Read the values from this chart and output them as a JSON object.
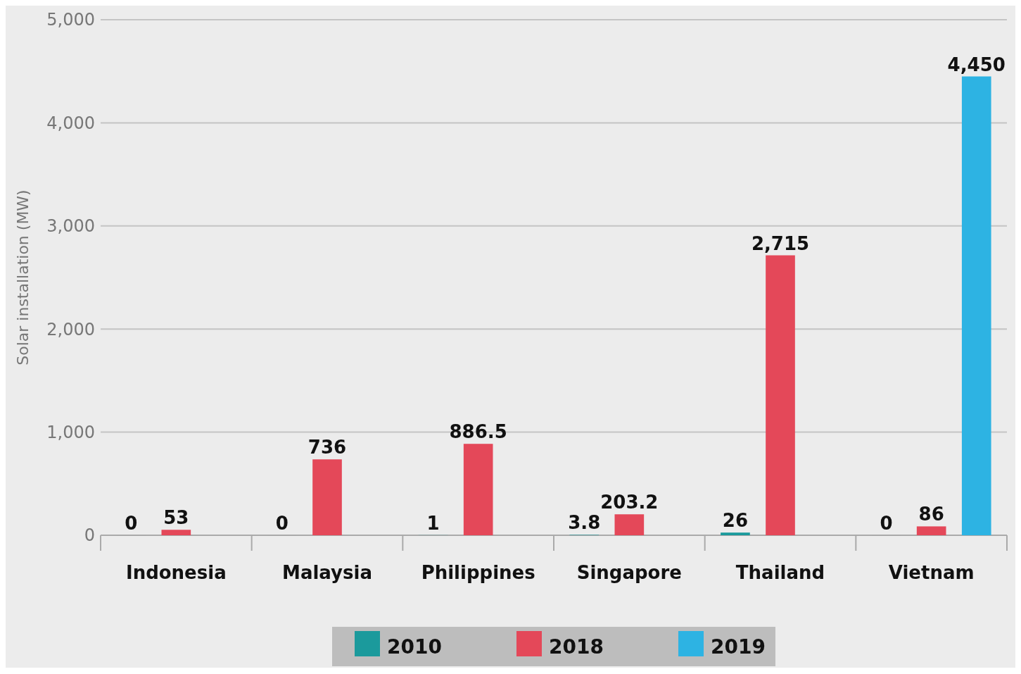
{
  "chart_data": {
    "type": "bar",
    "categories": [
      "Indonesia",
      "Malaysia",
      "Philippines",
      "Singapore",
      "Thailand",
      "Vietnam"
    ],
    "series": [
      {
        "name": "2010",
        "color": "#1b9a9c",
        "values": [
          0,
          0,
          1,
          3.8,
          26,
          0
        ],
        "value_labels": [
          "0",
          "0",
          "1",
          "3.8",
          "26",
          "0"
        ]
      },
      {
        "name": "2018",
        "color": "#e44859",
        "values": [
          53,
          736,
          886.5,
          203.2,
          2715,
          86
        ],
        "value_labels": [
          "53",
          "736",
          "886.5",
          "203.2",
          "2,715",
          "86"
        ]
      },
      {
        "name": "2019",
        "color": "#2db3e3",
        "values": [
          null,
          null,
          null,
          null,
          null,
          4450
        ],
        "value_labels": [
          null,
          null,
          null,
          null,
          null,
          "4,450"
        ]
      }
    ],
    "ylabel": "Solar installation (MW)",
    "ylim": [
      0,
      5000
    ],
    "yticks": [
      0,
      {
        "value": 1000,
        "label": "1,000"
      },
      {
        "value": 2000,
        "label": "2,000"
      },
      {
        "value": 3000,
        "label": "3,000"
      },
      {
        "value": 4000,
        "label": "4,000"
      },
      {
        "value": 5000,
        "label": "5,000"
      }
    ],
    "grid": "y",
    "legend": "bottom"
  }
}
